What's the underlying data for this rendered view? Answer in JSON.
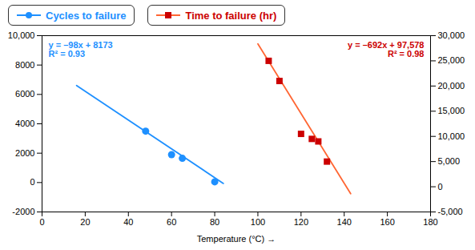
{
  "chart_data": {
    "type": "scatter",
    "xlabel": "Temperature (°C)",
    "xlim": [
      0,
      180
    ],
    "xticks": [
      0,
      20,
      40,
      60,
      80,
      100,
      120,
      140,
      160,
      180
    ],
    "ylim": [
      -2000,
      10000
    ],
    "yticks": [
      -2000,
      0,
      2000,
      4000,
      6000,
      8000,
      {
        "value": 10000,
        "label": "10,000"
      }
    ],
    "y2lim": [
      -5000,
      30000
    ],
    "y2ticks": [
      {
        "value": -5000,
        "label": "-5,000"
      },
      0,
      {
        "value": 5000,
        "label": "5,000"
      },
      {
        "value": 10000,
        "label": "10,000"
      },
      {
        "value": 15000,
        "label": "15,000"
      },
      {
        "value": 20000,
        "label": "20,000"
      },
      {
        "value": 25000,
        "label": "25,000"
      },
      {
        "value": 30000,
        "label": "30,000"
      }
    ],
    "grid": false,
    "series": [
      {
        "name": "Cycles to failure",
        "color": "#1E90FF",
        "marker": "circle",
        "x": [
          48,
          60,
          65,
          80
        ],
        "values": [
          3500,
          1900,
          1650,
          50
        ],
        "trend_x": [
          16,
          84
        ],
        "trend_values": [
          6605,
          -59
        ],
        "annotations": [
          "y = –98x + 8173",
          "R² = 0.93"
        ]
      },
      {
        "name": "Time to failure (hr)",
        "axis": "y2",
        "color": "#CC0000",
        "line_color": "#FF6633",
        "marker": "square",
        "x": [
          105,
          110,
          120,
          125,
          128,
          132
        ],
        "values": [
          25000,
          21000,
          10500,
          9500,
          9000,
          5000
        ],
        "trend_x": [
          100,
          143
        ],
        "trend_values": [
          28378,
          -1378
        ],
        "annotations": [
          "y = –692x + 97,578",
          "R² = 0.98"
        ]
      }
    ]
  }
}
